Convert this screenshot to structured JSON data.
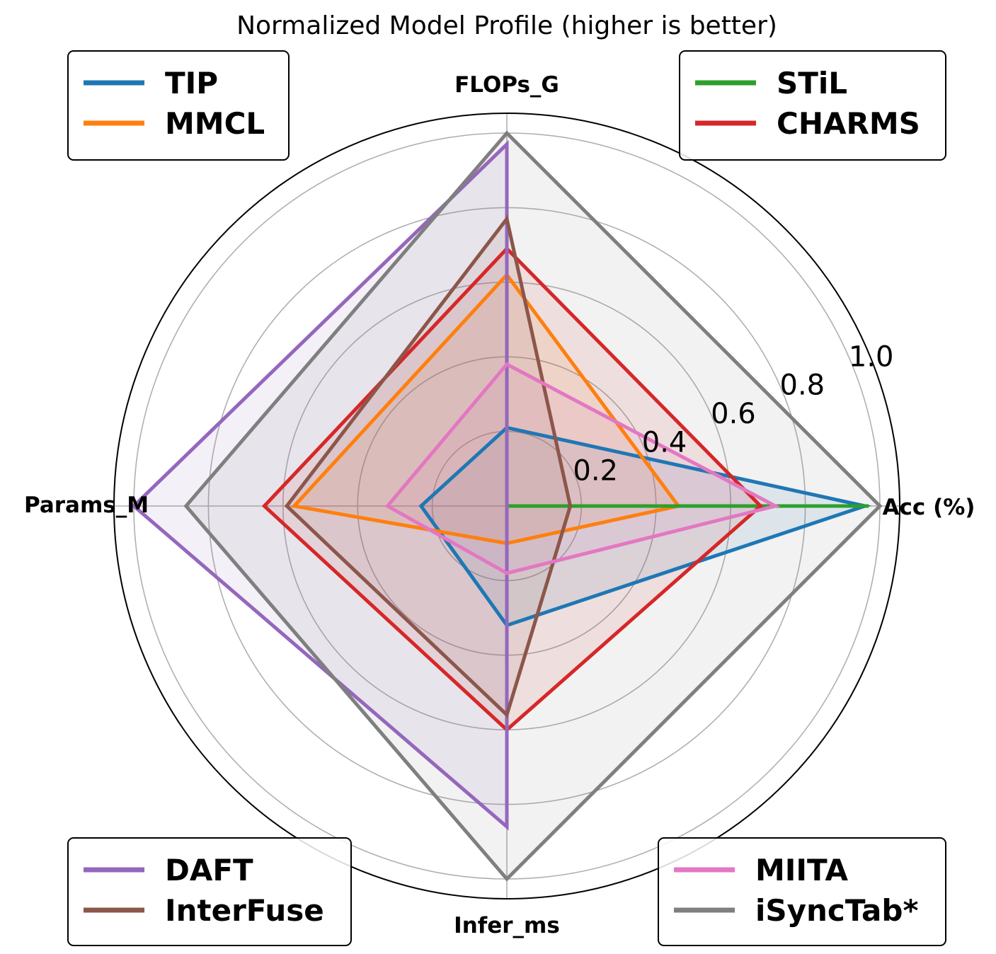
{
  "chart_data": {
    "type": "radar",
    "title": "Normalized Model Profile (higher is better)",
    "axes": [
      "Acc (%)",
      "FLOPs_G",
      "Params_M",
      "Infer_ms"
    ],
    "rlim": [
      0,
      1.0
    ],
    "r_ticks": [
      "0.2",
      "0.4",
      "0.6",
      "0.8",
      "1.0"
    ],
    "r_tick_values": [
      0.2,
      0.4,
      0.6,
      0.8,
      1.0
    ],
    "grid": true,
    "series": [
      {
        "name": "TIP",
        "color": "#1f77b4",
        "values": [
          0.96,
          0.21,
          0.23,
          0.32
        ]
      },
      {
        "name": "MMCL",
        "color": "#ff7f0e",
        "values": [
          0.46,
          0.62,
          0.57,
          0.1
        ]
      },
      {
        "name": "STiL",
        "color": "#2ca02c",
        "values": [
          0.97,
          0.0,
          0.0,
          0.0
        ]
      },
      {
        "name": "CHARMS",
        "color": "#d62728",
        "values": [
          0.68,
          0.69,
          0.65,
          0.6
        ]
      },
      {
        "name": "DAFT",
        "color": "#9467bd",
        "values": [
          0.0,
          0.97,
          1.0,
          0.86
        ]
      },
      {
        "name": "InterFuse",
        "color": "#8c564b",
        "values": [
          0.17,
          0.77,
          0.59,
          0.56
        ]
      },
      {
        "name": "MIITA",
        "color": "#e377c2",
        "values": [
          0.72,
          0.38,
          0.32,
          0.18
        ]
      },
      {
        "name": "iSyncTab*",
        "color": "#7f7f7f",
        "values": [
          1.0,
          1.0,
          0.86,
          1.0
        ]
      }
    ],
    "legends": [
      {
        "position": "top-left",
        "entries": [
          "TIP",
          "MMCL"
        ]
      },
      {
        "position": "top-right",
        "entries": [
          "STiL",
          "CHARMS"
        ]
      },
      {
        "position": "bottom-left",
        "entries": [
          "DAFT",
          "InterFuse"
        ]
      },
      {
        "position": "bottom-right",
        "entries": [
          "MIITA",
          "iSyncTab*"
        ]
      }
    ]
  }
}
